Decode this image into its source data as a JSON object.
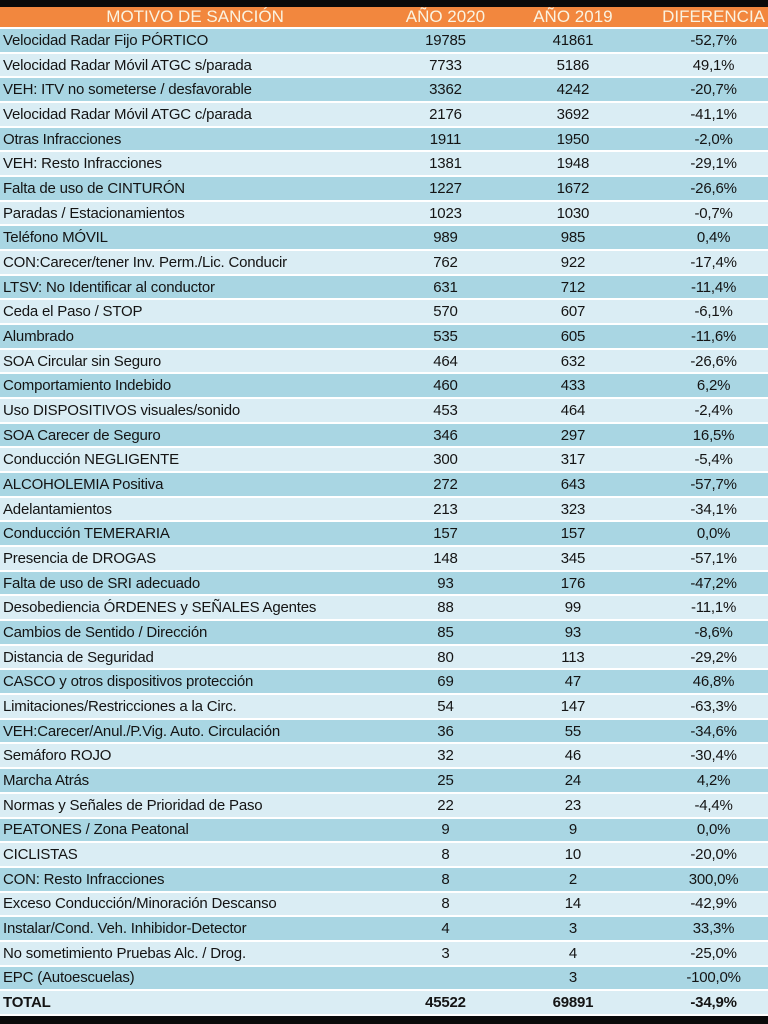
{
  "colors": {
    "header_bg": "#F2873E",
    "header_text": "#FAF3E1",
    "row_dark": "#A9D6E3",
    "row_light": "#DAEDF4",
    "body_text": "#141414",
    "frame_bar": "#0A0A0A"
  },
  "table": {
    "headers": {
      "motivo": "MOTIVO DE SANCIÓN",
      "ano_2020": "AÑO 2020",
      "ano_2019": "AÑO 2019",
      "diferencia": "DIFERENCIA"
    },
    "rows": [
      {
        "motivo": "Velocidad Radar Fijo PÓRTICO",
        "y2020": "19785",
        "y2019": "41861",
        "dif": "-52,7%"
      },
      {
        "motivo": "Velocidad Radar Móvil ATGC s/parada",
        "y2020": "7733",
        "y2019": "5186",
        "dif": "49,1%"
      },
      {
        "motivo": "VEH: ITV no someterse / desfavorable",
        "y2020": "3362",
        "y2019": "4242",
        "dif": "-20,7%"
      },
      {
        "motivo": "Velocidad Radar Móvil ATGC c/parada",
        "y2020": "2176",
        "y2019": "3692",
        "dif": "-41,1%"
      },
      {
        "motivo": "Otras Infracciones",
        "y2020": "1911",
        "y2019": "1950",
        "dif": "-2,0%"
      },
      {
        "motivo": "VEH: Resto Infracciones",
        "y2020": "1381",
        "y2019": "1948",
        "dif": "-29,1%"
      },
      {
        "motivo": "Falta de uso de CINTURÓN",
        "y2020": "1227",
        "y2019": "1672",
        "dif": "-26,6%"
      },
      {
        "motivo": "Paradas / Estacionamientos",
        "y2020": "1023",
        "y2019": "1030",
        "dif": "-0,7%"
      },
      {
        "motivo": "Teléfono MÓVIL",
        "y2020": "989",
        "y2019": "985",
        "dif": "0,4%"
      },
      {
        "motivo": "CON:Carecer/tener Inv. Perm./Lic. Conducir",
        "y2020": "762",
        "y2019": "922",
        "dif": "-17,4%"
      },
      {
        "motivo": "LTSV: No Identificar al conductor",
        "y2020": "631",
        "y2019": "712",
        "dif": "-11,4%"
      },
      {
        "motivo": "Ceda el Paso / STOP",
        "y2020": "570",
        "y2019": "607",
        "dif": "-6,1%"
      },
      {
        "motivo": "Alumbrado",
        "y2020": "535",
        "y2019": "605",
        "dif": "-11,6%"
      },
      {
        "motivo": "SOA Circular sin Seguro",
        "y2020": "464",
        "y2019": "632",
        "dif": "-26,6%"
      },
      {
        "motivo": "Comportamiento Indebido",
        "y2020": "460",
        "y2019": "433",
        "dif": "6,2%"
      },
      {
        "motivo": "Uso DISPOSITIVOS visuales/sonido",
        "y2020": "453",
        "y2019": "464",
        "dif": "-2,4%"
      },
      {
        "motivo": "SOA Carecer de Seguro",
        "y2020": "346",
        "y2019": "297",
        "dif": "16,5%"
      },
      {
        "motivo": "Conducción NEGLIGENTE",
        "y2020": "300",
        "y2019": "317",
        "dif": "-5,4%"
      },
      {
        "motivo": "ALCOHOLEMIA Positiva",
        "y2020": "272",
        "y2019": "643",
        "dif": "-57,7%"
      },
      {
        "motivo": "Adelantamientos",
        "y2020": "213",
        "y2019": "323",
        "dif": "-34,1%"
      },
      {
        "motivo": "Conducción TEMERARIA",
        "y2020": "157",
        "y2019": "157",
        "dif": "0,0%"
      },
      {
        "motivo": "Presencia de DROGAS",
        "y2020": "148",
        "y2019": "345",
        "dif": "-57,1%"
      },
      {
        "motivo": "Falta de uso de SRI adecuado",
        "y2020": "93",
        "y2019": "176",
        "dif": "-47,2%"
      },
      {
        "motivo": "Desobediencia ÓRDENES y SEÑALES Agentes",
        "y2020": "88",
        "y2019": "99",
        "dif": "-11,1%"
      },
      {
        "motivo": "Cambios de Sentido / Dirección",
        "y2020": "85",
        "y2019": "93",
        "dif": "-8,6%"
      },
      {
        "motivo": "Distancia de Seguridad",
        "y2020": "80",
        "y2019": "113",
        "dif": "-29,2%"
      },
      {
        "motivo": "CASCO y otros dispositivos protección",
        "y2020": "69",
        "y2019": "47",
        "dif": "46,8%"
      },
      {
        "motivo": "Limitaciones/Restricciones a la Circ.",
        "y2020": "54",
        "y2019": "147",
        "dif": "-63,3%"
      },
      {
        "motivo": "VEH:Carecer/Anul./P.Vig. Auto. Circulación",
        "y2020": "36",
        "y2019": "55",
        "dif": "-34,6%"
      },
      {
        "motivo": "Semáforo ROJO",
        "y2020": "32",
        "y2019": "46",
        "dif": "-30,4%"
      },
      {
        "motivo": "Marcha Atrás",
        "y2020": "25",
        "y2019": "24",
        "dif": "4,2%"
      },
      {
        "motivo": "Normas y Señales de Prioridad de Paso",
        "y2020": "22",
        "y2019": "23",
        "dif": "-4,4%"
      },
      {
        "motivo": "PEATONES / Zona Peatonal",
        "y2020": "9",
        "y2019": "9",
        "dif": "0,0%"
      },
      {
        "motivo": "CICLISTAS",
        "y2020": "8",
        "y2019": "10",
        "dif": "-20,0%"
      },
      {
        "motivo": "CON: Resto Infracciones",
        "y2020": "8",
        "y2019": "2",
        "dif": "300,0%"
      },
      {
        "motivo": "Exceso Conducción/Minoración Descanso",
        "y2020": "8",
        "y2019": "14",
        "dif": "-42,9%"
      },
      {
        "motivo": "Instalar/Cond. Veh. Inhibidor-Detector",
        "y2020": "4",
        "y2019": "3",
        "dif": "33,3%"
      },
      {
        "motivo": "No sometimiento Pruebas Alc. / Drog.",
        "y2020": "3",
        "y2019": "4",
        "dif": "-25,0%"
      },
      {
        "motivo": "EPC (Autoescuelas)",
        "y2020": "",
        "y2019": "3",
        "dif": "-100,0%"
      }
    ],
    "total": {
      "motivo": "TOTAL",
      "y2020": "45522",
      "y2019": "69891",
      "dif": "-34,9%"
    }
  }
}
